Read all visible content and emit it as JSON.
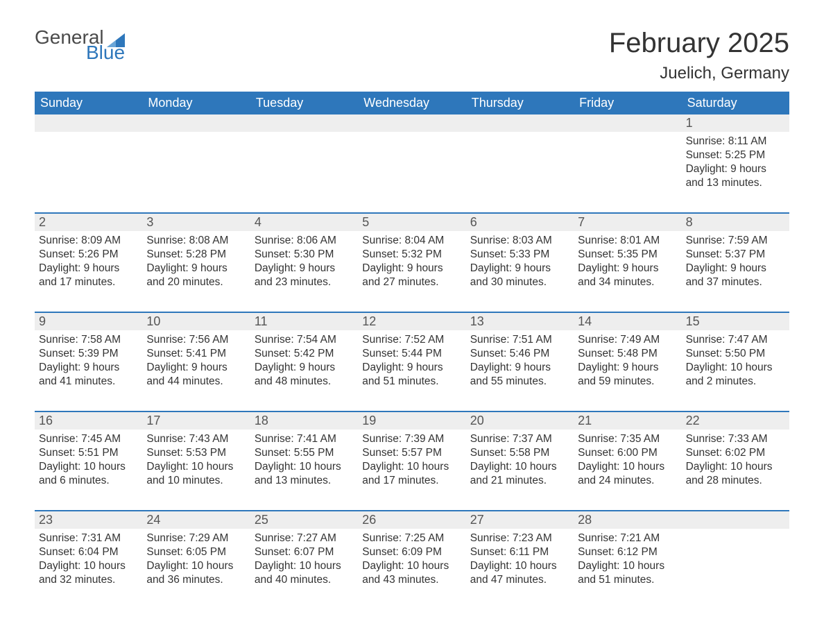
{
  "logo": {
    "text_general": "General",
    "text_blue": "Blue",
    "general_color": "#4a4a4a",
    "blue_color": "#2e77bb"
  },
  "title": "February 2025",
  "location": "Juelich, Germany",
  "colors": {
    "header_bg": "#2e77bb",
    "header_fg": "#ffffff",
    "strip_bg": "#eeeeee",
    "divider": "#2e77bb",
    "text": "#333333",
    "daynum": "#555555",
    "page_bg": "#ffffff"
  },
  "day_headers": [
    "Sunday",
    "Monday",
    "Tuesday",
    "Wednesday",
    "Thursday",
    "Friday",
    "Saturday"
  ],
  "weeks": [
    [
      {},
      {},
      {},
      {},
      {},
      {},
      {
        "n": "1",
        "sunrise": "Sunrise: 8:11 AM",
        "sunset": "Sunset: 5:25 PM",
        "day1": "Daylight: 9 hours",
        "day2": "and 13 minutes."
      }
    ],
    [
      {
        "n": "2",
        "sunrise": "Sunrise: 8:09 AM",
        "sunset": "Sunset: 5:26 PM",
        "day1": "Daylight: 9 hours",
        "day2": "and 17 minutes."
      },
      {
        "n": "3",
        "sunrise": "Sunrise: 8:08 AM",
        "sunset": "Sunset: 5:28 PM",
        "day1": "Daylight: 9 hours",
        "day2": "and 20 minutes."
      },
      {
        "n": "4",
        "sunrise": "Sunrise: 8:06 AM",
        "sunset": "Sunset: 5:30 PM",
        "day1": "Daylight: 9 hours",
        "day2": "and 23 minutes."
      },
      {
        "n": "5",
        "sunrise": "Sunrise: 8:04 AM",
        "sunset": "Sunset: 5:32 PM",
        "day1": "Daylight: 9 hours",
        "day2": "and 27 minutes."
      },
      {
        "n": "6",
        "sunrise": "Sunrise: 8:03 AM",
        "sunset": "Sunset: 5:33 PM",
        "day1": "Daylight: 9 hours",
        "day2": "and 30 minutes."
      },
      {
        "n": "7",
        "sunrise": "Sunrise: 8:01 AM",
        "sunset": "Sunset: 5:35 PM",
        "day1": "Daylight: 9 hours",
        "day2": "and 34 minutes."
      },
      {
        "n": "8",
        "sunrise": "Sunrise: 7:59 AM",
        "sunset": "Sunset: 5:37 PM",
        "day1": "Daylight: 9 hours",
        "day2": "and 37 minutes."
      }
    ],
    [
      {
        "n": "9",
        "sunrise": "Sunrise: 7:58 AM",
        "sunset": "Sunset: 5:39 PM",
        "day1": "Daylight: 9 hours",
        "day2": "and 41 minutes."
      },
      {
        "n": "10",
        "sunrise": "Sunrise: 7:56 AM",
        "sunset": "Sunset: 5:41 PM",
        "day1": "Daylight: 9 hours",
        "day2": "and 44 minutes."
      },
      {
        "n": "11",
        "sunrise": "Sunrise: 7:54 AM",
        "sunset": "Sunset: 5:42 PM",
        "day1": "Daylight: 9 hours",
        "day2": "and 48 minutes."
      },
      {
        "n": "12",
        "sunrise": "Sunrise: 7:52 AM",
        "sunset": "Sunset: 5:44 PM",
        "day1": "Daylight: 9 hours",
        "day2": "and 51 minutes."
      },
      {
        "n": "13",
        "sunrise": "Sunrise: 7:51 AM",
        "sunset": "Sunset: 5:46 PM",
        "day1": "Daylight: 9 hours",
        "day2": "and 55 minutes."
      },
      {
        "n": "14",
        "sunrise": "Sunrise: 7:49 AM",
        "sunset": "Sunset: 5:48 PM",
        "day1": "Daylight: 9 hours",
        "day2": "and 59 minutes."
      },
      {
        "n": "15",
        "sunrise": "Sunrise: 7:47 AM",
        "sunset": "Sunset: 5:50 PM",
        "day1": "Daylight: 10 hours",
        "day2": "and 2 minutes."
      }
    ],
    [
      {
        "n": "16",
        "sunrise": "Sunrise: 7:45 AM",
        "sunset": "Sunset: 5:51 PM",
        "day1": "Daylight: 10 hours",
        "day2": "and 6 minutes."
      },
      {
        "n": "17",
        "sunrise": "Sunrise: 7:43 AM",
        "sunset": "Sunset: 5:53 PM",
        "day1": "Daylight: 10 hours",
        "day2": "and 10 minutes."
      },
      {
        "n": "18",
        "sunrise": "Sunrise: 7:41 AM",
        "sunset": "Sunset: 5:55 PM",
        "day1": "Daylight: 10 hours",
        "day2": "and 13 minutes."
      },
      {
        "n": "19",
        "sunrise": "Sunrise: 7:39 AM",
        "sunset": "Sunset: 5:57 PM",
        "day1": "Daylight: 10 hours",
        "day2": "and 17 minutes."
      },
      {
        "n": "20",
        "sunrise": "Sunrise: 7:37 AM",
        "sunset": "Sunset: 5:58 PM",
        "day1": "Daylight: 10 hours",
        "day2": "and 21 minutes."
      },
      {
        "n": "21",
        "sunrise": "Sunrise: 7:35 AM",
        "sunset": "Sunset: 6:00 PM",
        "day1": "Daylight: 10 hours",
        "day2": "and 24 minutes."
      },
      {
        "n": "22",
        "sunrise": "Sunrise: 7:33 AM",
        "sunset": "Sunset: 6:02 PM",
        "day1": "Daylight: 10 hours",
        "day2": "and 28 minutes."
      }
    ],
    [
      {
        "n": "23",
        "sunrise": "Sunrise: 7:31 AM",
        "sunset": "Sunset: 6:04 PM",
        "day1": "Daylight: 10 hours",
        "day2": "and 32 minutes."
      },
      {
        "n": "24",
        "sunrise": "Sunrise: 7:29 AM",
        "sunset": "Sunset: 6:05 PM",
        "day1": "Daylight: 10 hours",
        "day2": "and 36 minutes."
      },
      {
        "n": "25",
        "sunrise": "Sunrise: 7:27 AM",
        "sunset": "Sunset: 6:07 PM",
        "day1": "Daylight: 10 hours",
        "day2": "and 40 minutes."
      },
      {
        "n": "26",
        "sunrise": "Sunrise: 7:25 AM",
        "sunset": "Sunset: 6:09 PM",
        "day1": "Daylight: 10 hours",
        "day2": "and 43 minutes."
      },
      {
        "n": "27",
        "sunrise": "Sunrise: 7:23 AM",
        "sunset": "Sunset: 6:11 PM",
        "day1": "Daylight: 10 hours",
        "day2": "and 47 minutes."
      },
      {
        "n": "28",
        "sunrise": "Sunrise: 7:21 AM",
        "sunset": "Sunset: 6:12 PM",
        "day1": "Daylight: 10 hours",
        "day2": "and 51 minutes."
      },
      {}
    ]
  ]
}
